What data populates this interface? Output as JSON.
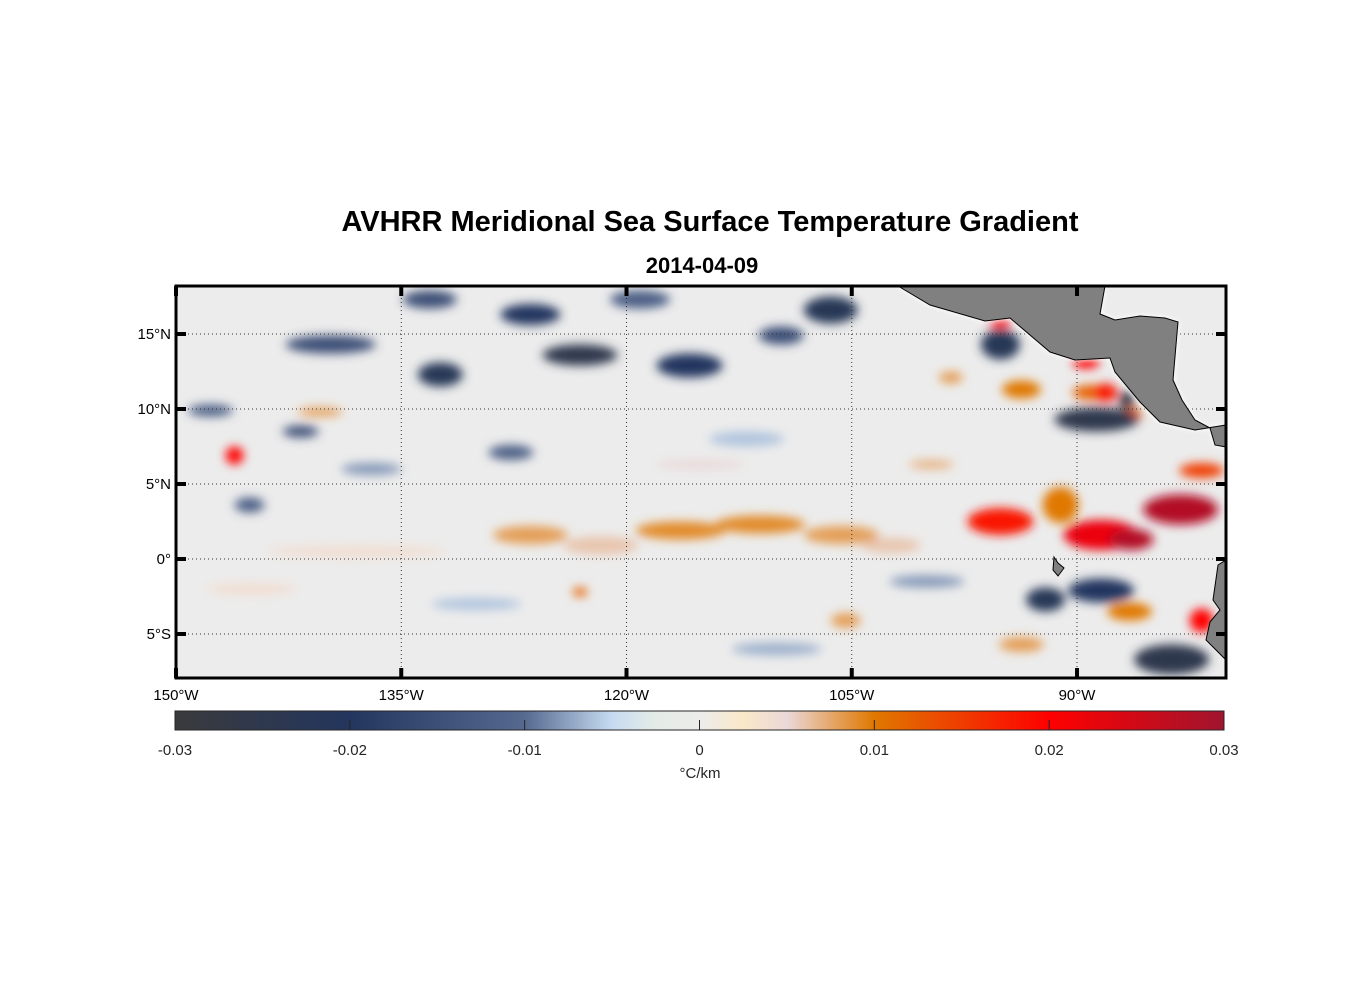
{
  "title": "AVHRR Meridional Sea Surface Temperature Gradient",
  "subtitle": "2014-04-09",
  "chart_data": {
    "type": "heatmap",
    "title": "AVHRR Meridional Sea Surface Temperature Gradient",
    "subtitle": "2014-04-09",
    "xlim": [
      -150,
      -80
    ],
    "ylim": [
      -8,
      18.2
    ],
    "x_ticks": [
      -150,
      -135,
      -120,
      -105,
      -90
    ],
    "x_tick_labels": [
      "150°W",
      "135°W",
      "120°W",
      "105°W",
      "90°W"
    ],
    "y_ticks": [
      15,
      10,
      5,
      0,
      -5
    ],
    "y_tick_labels": [
      "15°N",
      "10°N",
      "5°N",
      "0°",
      "5°S"
    ],
    "grid": true,
    "colorbar": {
      "range": [
        -0.03,
        0.03
      ],
      "ticks": [
        -0.03,
        -0.02,
        -0.01,
        0,
        0.01,
        0.02,
        0.03
      ],
      "tick_labels": [
        "-0.03",
        "-0.02",
        "-0.01",
        "0",
        "0.01",
        "0.02",
        "0.03"
      ],
      "label": "°C/km",
      "placement": "bottom",
      "colormap": [
        [
          -0.03,
          "#3a3a3c"
        ],
        [
          -0.02,
          "#23365e"
        ],
        [
          -0.01,
          "#56698f"
        ],
        [
          -0.005,
          "#c6dbf2"
        ],
        [
          -0.0025,
          "#e4ece6"
        ],
        [
          0,
          "#ececec"
        ],
        [
          0.0025,
          "#fbe8c8"
        ],
        [
          0.005,
          "#ead8d8"
        ],
        [
          0.01,
          "#e07800"
        ],
        [
          0.02,
          "#ff0000"
        ],
        [
          0.03,
          "#a0142e"
        ]
      ]
    },
    "features": [
      {
        "lon": -126.4,
        "lat": 1.6,
        "value": 0.008,
        "rx": 2.5,
        "ry": 0.6
      },
      {
        "lon": -121.7,
        "lat": 0.9,
        "value": 0.006,
        "rx": 2.5,
        "ry": 0.6
      },
      {
        "lon": -116.4,
        "lat": 1.9,
        "value": 0.009,
        "rx": 3,
        "ry": 0.6
      },
      {
        "lon": -111.1,
        "lat": 2.3,
        "value": 0.009,
        "rx": 3,
        "ry": 0.6
      },
      {
        "lon": -105.7,
        "lat": 1.6,
        "value": 0.008,
        "rx": 2.5,
        "ry": 0.6
      },
      {
        "lon": -102.4,
        "lat": 0.9,
        "value": 0.006,
        "rx": 2,
        "ry": 0.5
      },
      {
        "lon": -95.1,
        "lat": 2.5,
        "value": 0.018,
        "rx": 2.2,
        "ry": 0.9
      },
      {
        "lon": -91.1,
        "lat": 3.6,
        "value": 0.01,
        "rx": 1.2,
        "ry": 1.2
      },
      {
        "lon": -88.4,
        "lat": 1.6,
        "value": 0.022,
        "rx": 2.5,
        "ry": 1.0
      },
      {
        "lon": -86.4,
        "lat": 1.3,
        "value": 0.028,
        "rx": 1.5,
        "ry": 0.7
      },
      {
        "lon": -83.1,
        "lat": 3.3,
        "value": 0.028,
        "rx": 2.5,
        "ry": 1.0
      },
      {
        "lon": -81.7,
        "lat": 5.9,
        "value": 0.015,
        "rx": 1.5,
        "ry": 0.5
      },
      {
        "lon": -93.7,
        "lat": 11.3,
        "value": 0.01,
        "rx": 1.3,
        "ry": 0.6
      },
      {
        "lon": -89.1,
        "lat": 11.1,
        "value": 0.012,
        "rx": 1.2,
        "ry": 0.5
      },
      {
        "lon": -88.1,
        "lat": 11.1,
        "value": 0.018,
        "rx": 0.8,
        "ry": 0.6
      },
      {
        "lon": -89.4,
        "lat": 13.1,
        "value": 0.02,
        "rx": 0.9,
        "ry": 0.4
      },
      {
        "lon": -95.1,
        "lat": 15.7,
        "value": 0.02,
        "rx": 0.7,
        "ry": 0.3
      },
      {
        "lon": -86.4,
        "lat": 9.6,
        "value": 0.012,
        "rx": 0.7,
        "ry": 0.5
      },
      {
        "lon": -98.4,
        "lat": 12.1,
        "value": 0.008,
        "rx": 0.8,
        "ry": 0.4
      },
      {
        "lon": -88.7,
        "lat": 9.3,
        "value": -0.025,
        "rx": 2.8,
        "ry": 0.8
      },
      {
        "lon": -95.1,
        "lat": 14.3,
        "value": -0.022,
        "rx": 1.3,
        "ry": 1.0
      },
      {
        "lon": -92.1,
        "lat": -2.7,
        "value": -0.022,
        "rx": 1.3,
        "ry": 0.8
      },
      {
        "lon": -88.4,
        "lat": -2.1,
        "value": -0.02,
        "rx": 2.2,
        "ry": 0.8
      },
      {
        "lon": -83.7,
        "lat": -6.7,
        "value": -0.025,
        "rx": 2.5,
        "ry": 1.0
      },
      {
        "lon": -86.7,
        "lat": 10.6,
        "value": -0.028,
        "rx": 0.5,
        "ry": 0.6
      },
      {
        "lon": -126.4,
        "lat": 16.3,
        "value": -0.02,
        "rx": 2.0,
        "ry": 0.7
      },
      {
        "lon": -123.1,
        "lat": 13.6,
        "value": -0.025,
        "rx": 2.5,
        "ry": 0.7
      },
      {
        "lon": -132.4,
        "lat": 12.3,
        "value": -0.022,
        "rx": 1.5,
        "ry": 0.8
      },
      {
        "lon": -115.8,
        "lat": 12.9,
        "value": -0.02,
        "rx": 2.2,
        "ry": 0.8
      },
      {
        "lon": -106.4,
        "lat": 16.6,
        "value": -0.022,
        "rx": 1.8,
        "ry": 0.9
      },
      {
        "lon": -109.7,
        "lat": 14.9,
        "value": -0.015,
        "rx": 1.5,
        "ry": 0.6
      },
      {
        "lon": -139.7,
        "lat": 14.3,
        "value": -0.015,
        "rx": 3,
        "ry": 0.6
      },
      {
        "lon": -147.7,
        "lat": 9.9,
        "value": -0.012,
        "rx": 1.5,
        "ry": 0.4
      },
      {
        "lon": -141.7,
        "lat": 8.5,
        "value": -0.015,
        "rx": 1.2,
        "ry": 0.4
      },
      {
        "lon": -145.1,
        "lat": 3.6,
        "value": -0.012,
        "rx": 1.0,
        "ry": 0.5
      },
      {
        "lon": -127.7,
        "lat": 7.1,
        "value": -0.012,
        "rx": 1.5,
        "ry": 0.5
      },
      {
        "lon": -133.1,
        "lat": 17.3,
        "value": -0.015,
        "rx": 1.8,
        "ry": 0.6
      },
      {
        "lon": -119.1,
        "lat": 17.3,
        "value": -0.012,
        "rx": 2,
        "ry": 0.6
      },
      {
        "lon": -137.0,
        "lat": 6.0,
        "value": -0.008,
        "rx": 2,
        "ry": 0.4
      },
      {
        "lon": -112.0,
        "lat": 8.0,
        "value": -0.006,
        "rx": 2.5,
        "ry": 0.5
      },
      {
        "lon": -100.0,
        "lat": -1.5,
        "value": -0.008,
        "rx": 2.5,
        "ry": 0.4
      },
      {
        "lon": -130.0,
        "lat": -3.0,
        "value": -0.006,
        "rx": 3,
        "ry": 0.4
      },
      {
        "lon": -110.0,
        "lat": -6.0,
        "value": -0.007,
        "rx": 3,
        "ry": 0.4
      },
      {
        "lon": -146.1,
        "lat": 6.9,
        "value": 0.02,
        "rx": 0.6,
        "ry": 0.6
      },
      {
        "lon": -140.4,
        "lat": 9.8,
        "value": 0.008,
        "rx": 1.5,
        "ry": 0.3
      },
      {
        "lon": -123.1,
        "lat": -2.2,
        "value": 0.012,
        "rx": 0.5,
        "ry": 0.3
      },
      {
        "lon": -105.4,
        "lat": -4.1,
        "value": 0.008,
        "rx": 1.0,
        "ry": 0.5
      },
      {
        "lon": -93.7,
        "lat": -5.7,
        "value": 0.008,
        "rx": 1.5,
        "ry": 0.5
      },
      {
        "lon": -81.7,
        "lat": -4.1,
        "value": 0.02,
        "rx": 0.8,
        "ry": 0.8
      },
      {
        "lon": -86.5,
        "lat": -3.5,
        "value": 0.01,
        "rx": 1.5,
        "ry": 0.6
      },
      {
        "lon": -99.7,
        "lat": 6.3,
        "value": 0.007,
        "rx": 1.5,
        "ry": 0.3
      },
      {
        "lon": -115.1,
        "lat": 6.3,
        "value": 0.005,
        "rx": 3,
        "ry": 0.3
      },
      {
        "lon": -138.0,
        "lat": 0.5,
        "value": 0.004,
        "rx": 6,
        "ry": 0.4
      },
      {
        "lon": -145.0,
        "lat": -2.0,
        "value": 0.004,
        "rx": 3,
        "ry": 0.4
      }
    ]
  }
}
